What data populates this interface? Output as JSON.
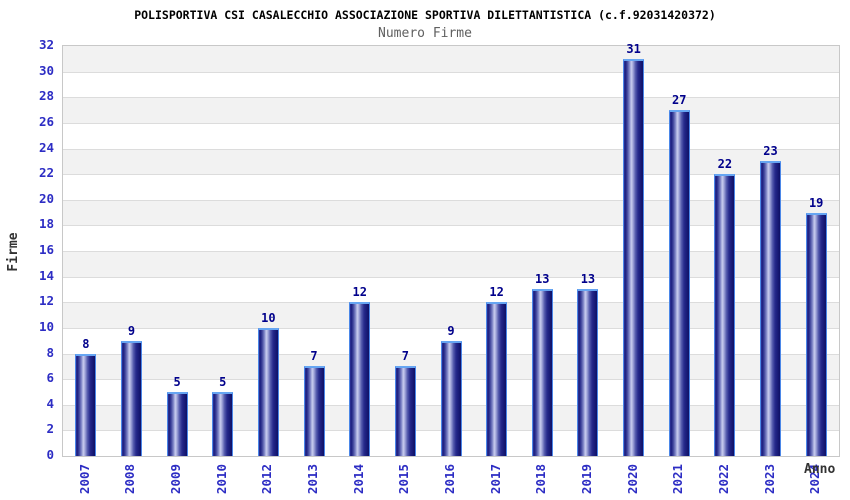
{
  "chart_data": {
    "type": "bar",
    "title": "POLISPORTIVA CSI CASALECCHIO ASSOCIAZIONE SPORTIVA DILETTANTISTICA (c.f.92031420372)",
    "subtitle": "Numero Firme",
    "xlabel": "Anno",
    "ylabel": "Firme",
    "categories": [
      "2007",
      "2008",
      "2009",
      "2010",
      "2012",
      "2013",
      "2014",
      "2015",
      "2016",
      "2017",
      "2018",
      "2019",
      "2020",
      "2021",
      "2022",
      "2023",
      "2024"
    ],
    "values": [
      8,
      9,
      5,
      5,
      10,
      7,
      12,
      7,
      9,
      12,
      13,
      13,
      31,
      27,
      22,
      23,
      19
    ],
    "ylim": [
      0,
      32
    ],
    "ytick_step": 2,
    "grid": "horizontal-bands-alternating",
    "legend": "none",
    "colors": {
      "title_text": "#000000",
      "subtitle_text": "#606060",
      "axis_label_text": "#333333",
      "tick_text": "#2d2dc4",
      "value_text": "#00008b",
      "band_gray": "#f2f2f2",
      "band_white": "#ffffff",
      "grid_line": "#dcdcdc",
      "bar_dark": "#1c1f80",
      "bar_light": "#c7cbee",
      "bar_border": "#4b87e8",
      "background": "#ffffff"
    }
  }
}
